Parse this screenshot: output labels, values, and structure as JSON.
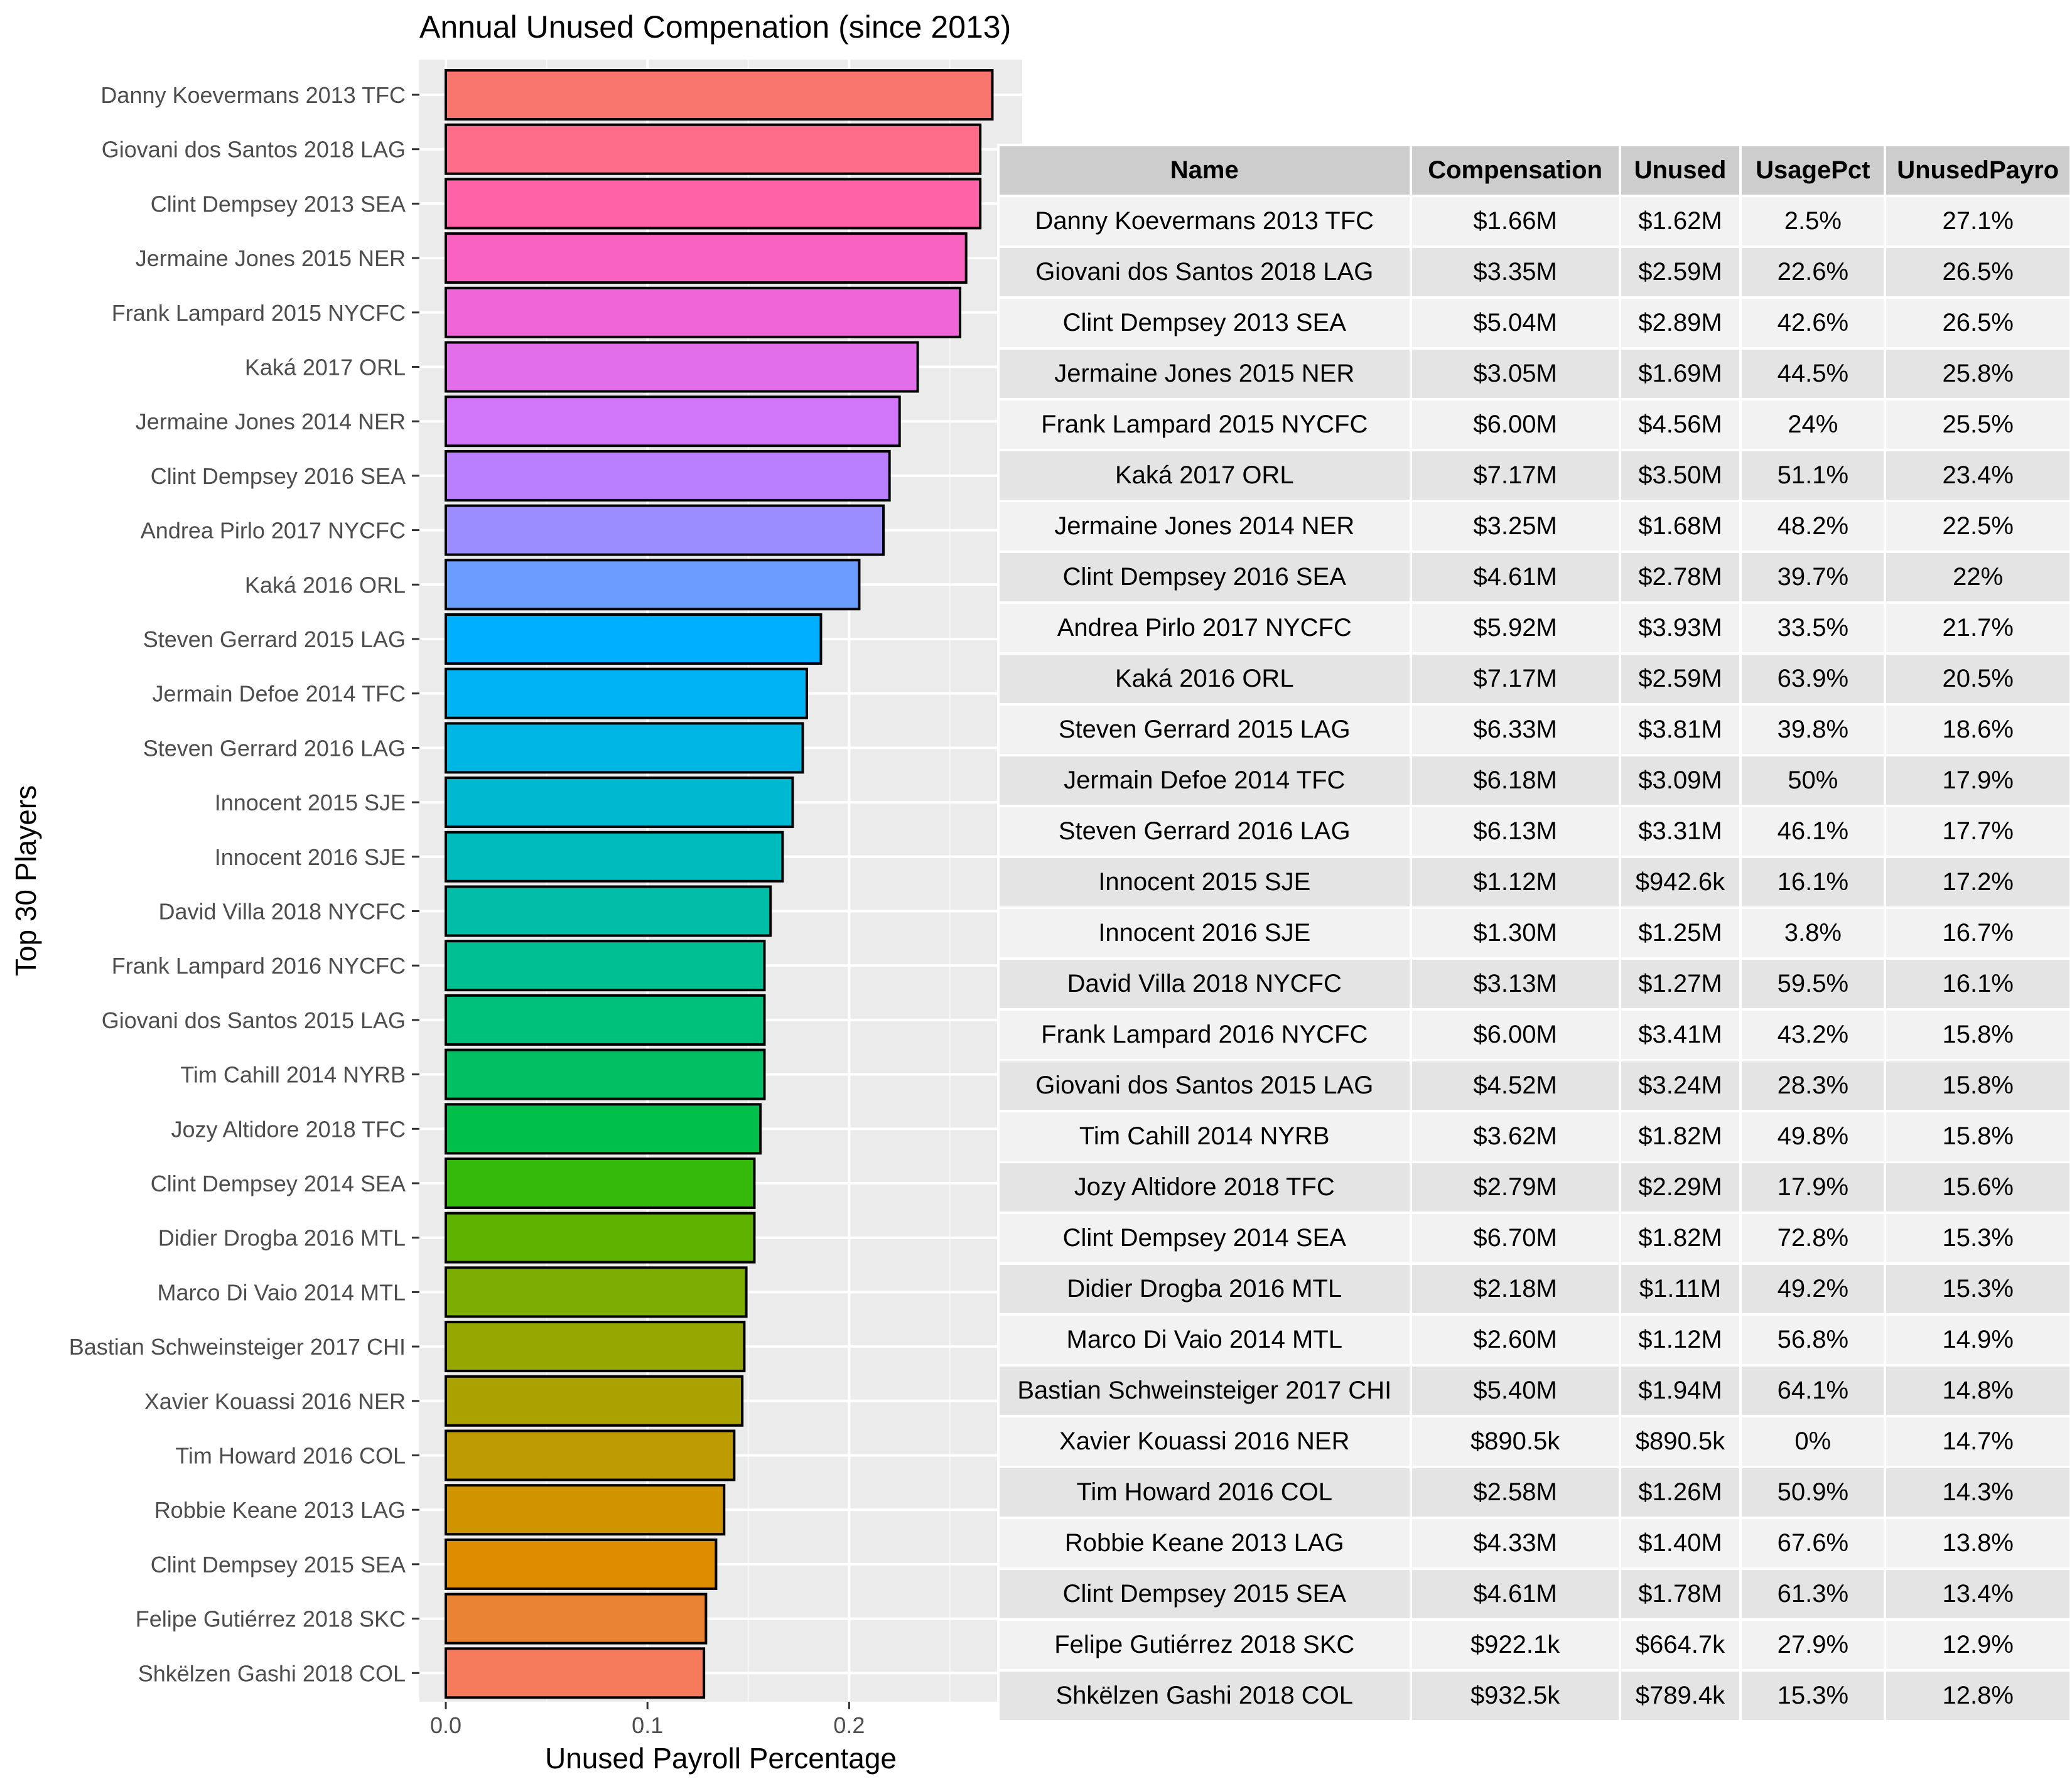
{
  "chart_data": {
    "type": "bar",
    "orientation": "horizontal",
    "title": "Annual Unused Compenation (since 2013)",
    "xlabel": "Unused Payroll Percentage",
    "ylabel": "Top 30 Players",
    "xlim": [
      0,
      0.283
    ],
    "x_ticks": [
      "0.0",
      "0.1",
      "0.2"
    ],
    "x_tick_values": [
      0,
      0.1,
      0.2
    ],
    "grid": true,
    "categories": [
      "Danny Koevermans 2013 TFC",
      "Giovani dos Santos 2018 LAG",
      "Clint Dempsey 2013 SEA",
      "Jermaine Jones 2015 NER",
      "Frank Lampard 2015 NYCFC",
      "Kaká 2017 ORL",
      "Jermaine Jones 2014 NER",
      "Clint Dempsey 2016 SEA",
      "Andrea Pirlo 2017 NYCFC",
      "Kaká 2016 ORL",
      "Steven Gerrard 2015 LAG",
      "Jermain Defoe 2014 TFC",
      "Steven Gerrard 2016 LAG",
      "Innocent 2015 SJE",
      "Innocent 2016 SJE",
      "David Villa 2018 NYCFC",
      "Frank Lampard 2016 NYCFC",
      "Giovani dos Santos 2015 LAG",
      "Tim Cahill 2014 NYRB",
      "Jozy Altidore 2018 TFC",
      "Clint Dempsey 2014 SEA",
      "Didier Drogba 2016 MTL",
      "Marco Di Vaio 2014 MTL",
      "Bastian Schweinsteiger 2017 CHI",
      "Xavier Kouassi 2016 NER",
      "Tim Howard 2016 COL",
      "Robbie Keane 2013 LAG",
      "Clint Dempsey 2015 SEA",
      "Felipe Gutiérrez 2018 SKC",
      "Shkëlzen Gashi 2018 COL"
    ],
    "values": [
      0.271,
      0.265,
      0.265,
      0.258,
      0.255,
      0.234,
      0.225,
      0.22,
      0.217,
      0.205,
      0.186,
      0.179,
      0.177,
      0.172,
      0.167,
      0.161,
      0.158,
      0.158,
      0.158,
      0.156,
      0.153,
      0.153,
      0.149,
      0.148,
      0.147,
      0.143,
      0.138,
      0.134,
      0.129,
      0.128
    ],
    "colors": [
      "#F8766D",
      "#FD6C88",
      "#FF62A6",
      "#FA62C1",
      "#F066D8",
      "#E36EEA",
      "#D176F9",
      "#BA7FFF",
      "#9B8DFF",
      "#6B9DFF",
      "#00AFFF",
      "#00B3F3",
      "#00B6E4",
      "#00B9D1",
      "#00BBBC",
      "#00BDA7",
      "#00BF92",
      "#00C17C",
      "#00C064",
      "#00BF4A",
      "#35B90A",
      "#5EB300",
      "#7CAD00",
      "#95A700",
      "#AAA200",
      "#BE9B00",
      "#CF9400",
      "#DE8C00",
      "#EB8335",
      "#F47A5B"
    ]
  },
  "table": {
    "columns": [
      "Name",
      "Compensation",
      "Unused",
      "UsagePct",
      "UnusedPayro"
    ],
    "rows": [
      [
        "Danny Koevermans 2013 TFC",
        "$1.66M",
        "$1.62M",
        "2.5%",
        "27.1%"
      ],
      [
        "Giovani dos Santos 2018 LAG",
        "$3.35M",
        "$2.59M",
        "22.6%",
        "26.5%"
      ],
      [
        "Clint Dempsey 2013 SEA",
        "$5.04M",
        "$2.89M",
        "42.6%",
        "26.5%"
      ],
      [
        "Jermaine Jones 2015 NER",
        "$3.05M",
        "$1.69M",
        "44.5%",
        "25.8%"
      ],
      [
        "Frank Lampard 2015 NYCFC",
        "$6.00M",
        "$4.56M",
        "24%",
        "25.5%"
      ],
      [
        "Kaká 2017 ORL",
        "$7.17M",
        "$3.50M",
        "51.1%",
        "23.4%"
      ],
      [
        "Jermaine Jones 2014 NER",
        "$3.25M",
        "$1.68M",
        "48.2%",
        "22.5%"
      ],
      [
        "Clint Dempsey 2016 SEA",
        "$4.61M",
        "$2.78M",
        "39.7%",
        "22%"
      ],
      [
        "Andrea Pirlo 2017 NYCFC",
        "$5.92M",
        "$3.93M",
        "33.5%",
        "21.7%"
      ],
      [
        "Kaká 2016 ORL",
        "$7.17M",
        "$2.59M",
        "63.9%",
        "20.5%"
      ],
      [
        "Steven Gerrard 2015 LAG",
        "$6.33M",
        "$3.81M",
        "39.8%",
        "18.6%"
      ],
      [
        "Jermain Defoe 2014 TFC",
        "$6.18M",
        "$3.09M",
        "50%",
        "17.9%"
      ],
      [
        "Steven Gerrard 2016 LAG",
        "$6.13M",
        "$3.31M",
        "46.1%",
        "17.7%"
      ],
      [
        "Innocent 2015 SJE",
        "$1.12M",
        "$942.6k",
        "16.1%",
        "17.2%"
      ],
      [
        "Innocent 2016 SJE",
        "$1.30M",
        "$1.25M",
        "3.8%",
        "16.7%"
      ],
      [
        "David Villa 2018 NYCFC",
        "$3.13M",
        "$1.27M",
        "59.5%",
        "16.1%"
      ],
      [
        "Frank Lampard 2016 NYCFC",
        "$6.00M",
        "$3.41M",
        "43.2%",
        "15.8%"
      ],
      [
        "Giovani dos Santos 2015 LAG",
        "$4.52M",
        "$3.24M",
        "28.3%",
        "15.8%"
      ],
      [
        "Tim Cahill 2014 NYRB",
        "$3.62M",
        "$1.82M",
        "49.8%",
        "15.8%"
      ],
      [
        "Jozy Altidore 2018 TFC",
        "$2.79M",
        "$2.29M",
        "17.9%",
        "15.6%"
      ],
      [
        "Clint Dempsey 2014 SEA",
        "$6.70M",
        "$1.82M",
        "72.8%",
        "15.3%"
      ],
      [
        "Didier Drogba 2016 MTL",
        "$2.18M",
        "$1.11M",
        "49.2%",
        "15.3%"
      ],
      [
        "Marco Di Vaio 2014 MTL",
        "$2.60M",
        "$1.12M",
        "56.8%",
        "14.9%"
      ],
      [
        "Bastian Schweinsteiger 2017 CHI",
        "$5.40M",
        "$1.94M",
        "64.1%",
        "14.8%"
      ],
      [
        "Xavier Kouassi 2016 NER",
        "$890.5k",
        "$890.5k",
        "0%",
        "14.7%"
      ],
      [
        "Tim Howard 2016 COL",
        "$2.58M",
        "$1.26M",
        "50.9%",
        "14.3%"
      ],
      [
        "Robbie Keane 2013 LAG",
        "$4.33M",
        "$1.40M",
        "67.6%",
        "13.8%"
      ],
      [
        "Clint Dempsey 2015 SEA",
        "$4.61M",
        "$1.78M",
        "61.3%",
        "13.4%"
      ],
      [
        "Felipe Gutiérrez 2018 SKC",
        "$922.1k",
        "$664.7k",
        "27.9%",
        "12.9%"
      ],
      [
        "Shkëlzen Gashi 2018 COL",
        "$932.5k",
        "$789.4k",
        "15.3%",
        "12.8%"
      ]
    ]
  }
}
